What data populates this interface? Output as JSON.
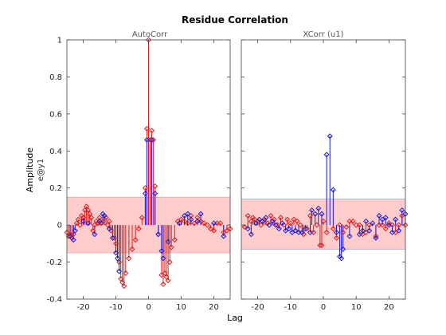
{
  "chart_data": [
    {
      "type": "stem",
      "title": "Residue Correlation",
      "subtitle": "AutoCorr",
      "xlabel": "Lag",
      "ylabel": "Amplitude",
      "ylabel2": "e@y1",
      "xlim": [
        -25,
        25
      ],
      "ylim": [
        -0.4,
        1
      ],
      "xticks": [
        -20,
        -10,
        0,
        10,
        20
      ],
      "yticks": [
        -0.4,
        -0.2,
        0,
        0.2,
        0.4,
        0.6,
        0.8,
        1
      ],
      "ytick_labels": [
        "-0.4",
        "-0.2",
        "0",
        "0.2",
        "0.4",
        "0.6",
        "0.8",
        "1"
      ],
      "confidence_band": [
        -0.15,
        0.15
      ],
      "colors": {
        "red": "#d62020",
        "blue": "#1a1acc",
        "band": "#ffcccc",
        "band_edge": "#f2a0a0"
      },
      "series": [
        {
          "color": "red",
          "points": [
            [
              -25,
              -0.04
            ],
            [
              -24.5,
              -0.06
            ],
            [
              -24,
              -0.05
            ],
            [
              -23.5,
              -0.07
            ],
            [
              -23,
              -0.05
            ],
            [
              -22,
              0.01
            ],
            [
              -21.5,
              0.03
            ],
            [
              -21,
              0.0
            ],
            [
              -20.5,
              0.05
            ],
            [
              -20,
              0.04
            ],
            [
              -19.5,
              0.08
            ],
            [
              -19,
              0.1
            ],
            [
              -18.5,
              0.08
            ],
            [
              -18,
              0.06
            ],
            [
              -17.5,
              0.04
            ],
            [
              -17,
              -0.03
            ],
            [
              -16.5,
              0.0
            ],
            [
              -16,
              0.02
            ],
            [
              -15.5,
              0.01
            ],
            [
              -15,
              0.04
            ],
            [
              -14.5,
              0.01
            ],
            [
              -14,
              0.02
            ],
            [
              -13,
              0.04
            ],
            [
              -12.5,
              0.0
            ],
            [
              -12,
              0.02
            ],
            [
              -11.5,
              -0.03
            ],
            [
              -10.5,
              -0.07
            ],
            [
              -10,
              -0.1
            ],
            [
              -9,
              -0.2
            ],
            [
              -8.5,
              -0.29
            ],
            [
              -8,
              -0.31
            ],
            [
              -7.5,
              -0.33
            ],
            [
              -7,
              -0.26
            ],
            [
              -6,
              -0.18
            ],
            [
              -5,
              -0.13
            ],
            [
              -4,
              -0.08
            ],
            [
              -3,
              -0.02
            ],
            [
              -2,
              0.04
            ],
            [
              -1,
              0.2
            ],
            [
              -0.5,
              0.52
            ],
            [
              0,
              1.0
            ],
            [
              0.5,
              0.46
            ],
            [
              1,
              0.51
            ],
            [
              1.5,
              0.46
            ],
            [
              2,
              0.21
            ],
            [
              3,
              -0.05
            ],
            [
              4,
              -0.27
            ],
            [
              4.5,
              -0.32
            ],
            [
              5,
              -0.26
            ],
            [
              5.5,
              -0.28
            ],
            [
              6,
              -0.3
            ],
            [
              6.5,
              -0.2
            ],
            [
              7,
              -0.12
            ],
            [
              8,
              -0.08
            ],
            [
              9,
              0.02
            ],
            [
              10,
              0.03
            ],
            [
              11,
              0.02
            ],
            [
              12,
              0.01
            ],
            [
              13,
              0.05
            ],
            [
              14,
              0.01
            ],
            [
              15,
              0.04
            ],
            [
              16,
              0.02
            ],
            [
              17,
              0.01
            ],
            [
              18,
              0.0
            ],
            [
              19,
              -0.02
            ],
            [
              20,
              -0.03
            ],
            [
              21,
              0.01
            ],
            [
              22,
              0.01
            ],
            [
              23,
              -0.04
            ],
            [
              24,
              -0.03
            ],
            [
              25,
              -0.02
            ]
          ]
        },
        {
          "color": "blue",
          "points": [
            [
              -24,
              -0.06
            ],
            [
              -23,
              -0.08
            ],
            [
              -22.5,
              -0.03
            ],
            [
              -20,
              0.02
            ],
            [
              -18.5,
              0.01
            ],
            [
              -16.5,
              -0.05
            ],
            [
              -15,
              0.02
            ],
            [
              -14,
              0.06
            ],
            [
              -13.5,
              0.05
            ],
            [
              -12,
              -0.02
            ],
            [
              -11,
              -0.07
            ],
            [
              -10,
              -0.15
            ],
            [
              -9.5,
              -0.18
            ],
            [
              -9,
              -0.25
            ],
            [
              -1,
              0.17
            ],
            [
              -0.5,
              0.46
            ],
            [
              1,
              0.46
            ],
            [
              2,
              0.17
            ],
            [
              3,
              -0.05
            ],
            [
              4,
              -0.14
            ],
            [
              4.5,
              -0.18
            ],
            [
              6,
              -0.09
            ],
            [
              9.5,
              0.01
            ],
            [
              11,
              0.05
            ],
            [
              12,
              0.06
            ],
            [
              13,
              0.03
            ],
            [
              15,
              0.02
            ],
            [
              16,
              0.06
            ],
            [
              20,
              0.01
            ],
            [
              23,
              -0.06
            ]
          ]
        }
      ]
    },
    {
      "type": "stem",
      "subtitle": "XCorr (u1)",
      "xlim": [
        -25,
        25
      ],
      "ylim": [
        -0.4,
        1
      ],
      "xticks": [
        -20,
        -10,
        0,
        10,
        20
      ],
      "confidence_band": [
        -0.13,
        0.14
      ],
      "colors": {
        "red": "#d62020",
        "blue": "#1a1acc",
        "band": "#ffcccc",
        "band_edge": "#9aa6e0"
      },
      "series": [
        {
          "color": "red",
          "points": [
            [
              -24,
              -0.01
            ],
            [
              -23,
              0.05
            ],
            [
              -22,
              0.02
            ],
            [
              -21.5,
              0.04
            ],
            [
              -21,
              0.03
            ],
            [
              -20,
              0.02
            ],
            [
              -19,
              0.0
            ],
            [
              -18,
              0.03
            ],
            [
              -17,
              0.01
            ],
            [
              -16,
              0.05
            ],
            [
              -15,
              0.03
            ],
            [
              -14,
              0.0
            ],
            [
              -13,
              0.04
            ],
            [
              -12,
              0.0
            ],
            [
              -11,
              0.03
            ],
            [
              -10,
              0.01
            ],
            [
              -9,
              0.03
            ],
            [
              -8,
              0.02
            ],
            [
              -7,
              0.0
            ],
            [
              -6,
              -0.05
            ],
            [
              -5,
              -0.02
            ],
            [
              -4,
              0.05
            ],
            [
              -3,
              -0.04
            ],
            [
              -2,
              0.0
            ],
            [
              -1,
              -0.11
            ],
            [
              -0.5,
              -0.11
            ],
            [
              0,
              0.02
            ],
            [
              1,
              -0.04
            ],
            [
              3,
              -0.02
            ],
            [
              4,
              -0.07
            ],
            [
              5,
              0.0
            ],
            [
              6,
              -0.04
            ],
            [
              7,
              -0.01
            ],
            [
              8,
              0.02
            ],
            [
              9,
              0.02
            ],
            [
              10,
              0.0
            ],
            [
              11,
              0.0
            ],
            [
              12,
              -0.05
            ],
            [
              13,
              -0.04
            ],
            [
              14,
              0.0
            ],
            [
              16,
              -0.06
            ],
            [
              17,
              0.0
            ],
            [
              18,
              0.0
            ],
            [
              19,
              -0.02
            ],
            [
              20,
              0.01
            ],
            [
              21,
              0.0
            ],
            [
              22,
              -0.04
            ],
            [
              23,
              0.0
            ],
            [
              24,
              0.05
            ],
            [
              25,
              0.0
            ]
          ]
        },
        {
          "color": "blue",
          "points": [
            [
              -23,
              -0.02
            ],
            [
              -22,
              -0.05
            ],
            [
              -20.5,
              0.01
            ],
            [
              -19.5,
              0.03
            ],
            [
              -18.5,
              0.02
            ],
            [
              -17.5,
              0.04
            ],
            [
              -16.5,
              0.0
            ],
            [
              -15.5,
              0.02
            ],
            [
              -14.5,
              0.0
            ],
            [
              -13.5,
              -0.02
            ],
            [
              -12.5,
              0.01
            ],
            [
              -11.5,
              -0.03
            ],
            [
              -10.5,
              -0.02
            ],
            [
              -9.5,
              -0.04
            ],
            [
              -8.5,
              -0.03
            ],
            [
              -7.5,
              -0.04
            ],
            [
              -6.5,
              -0.04
            ],
            [
              -5.5,
              -0.02
            ],
            [
              -4,
              -0.04
            ],
            [
              -3.5,
              0.08
            ],
            [
              -2.5,
              0.06
            ],
            [
              -1.5,
              0.09
            ],
            [
              -0.5,
              0.06
            ],
            [
              1,
              0.38
            ],
            [
              2,
              0.48
            ],
            [
              3,
              0.19
            ],
            [
              4,
              -0.04
            ],
            [
              5,
              -0.17
            ],
            [
              5.5,
              -0.18
            ],
            [
              6,
              -0.13
            ],
            [
              8,
              -0.06
            ],
            [
              11,
              -0.05
            ],
            [
              12,
              -0.03
            ],
            [
              13,
              0.02
            ],
            [
              14,
              -0.03
            ],
            [
              15,
              0.01
            ],
            [
              16,
              -0.07
            ],
            [
              17,
              0.05
            ],
            [
              18,
              0.03
            ],
            [
              19,
              0.04
            ],
            [
              20,
              0.0
            ],
            [
              21,
              -0.04
            ],
            [
              22,
              0.03
            ],
            [
              23,
              -0.03
            ],
            [
              24,
              0.08
            ],
            [
              25,
              0.06
            ]
          ]
        }
      ]
    }
  ]
}
